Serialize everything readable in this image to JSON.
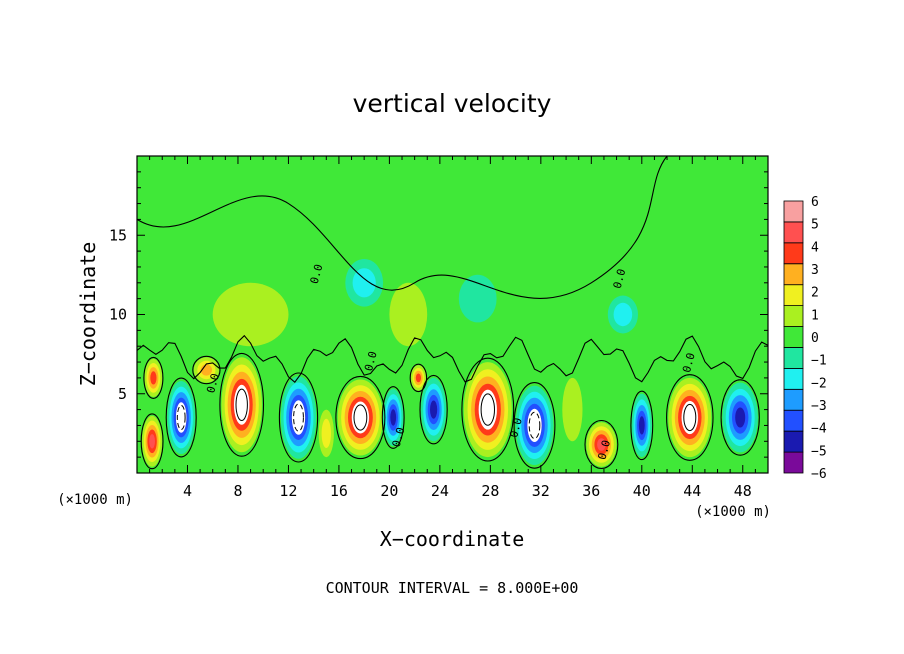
{
  "chart_data": {
    "type": "heatmap",
    "title": "vertical velocity",
    "xlabel": "X−coordinate",
    "ylabel": "Z−coordinate",
    "x_unit": "(×1000 m)",
    "y_unit": "(×1000 m)",
    "xlim": [
      0,
      50
    ],
    "ylim": [
      0,
      20
    ],
    "x_ticks": [
      4,
      8,
      12,
      16,
      20,
      24,
      28,
      32,
      36,
      40,
      44,
      48
    ],
    "y_ticks": [
      5,
      10,
      15
    ],
    "colorbar_ticks": [
      "6",
      "5",
      "4",
      "3",
      "2",
      "1",
      "0",
      "−1",
      "−2",
      "−3",
      "−4",
      "−5",
      "−6"
    ],
    "colorbar_range": [
      -6,
      6
    ],
    "colors": [
      "#7a0a9a",
      "#1a1ab0",
      "#2250ff",
      "#1e9cff",
      "#20f0f0",
      "#20e6a0",
      "#40e838",
      "#aaf020",
      "#f0f020",
      "#ffb020",
      "#ff3a1a",
      "#ff5050",
      "#f8a0a0"
    ],
    "contour_interval_text": "CONTOUR INTERVAL = 8.000E+00",
    "contour_labels": [
      "0.0",
      "0.0",
      "0.0",
      "0.0",
      "0.0",
      "0.0",
      "0.0",
      "0.0"
    ],
    "cells": [
      {
        "x": 1.2,
        "z": 2.0,
        "w": 5,
        "sx": 0.8,
        "sz": 1.6
      },
      {
        "x": 1.3,
        "z": 6.0,
        "w": 4,
        "sx": 0.7,
        "sz": 1.2
      },
      {
        "x": 3.5,
        "z": 3.5,
        "w": -6,
        "sx": 1.1,
        "sz": 2.3
      },
      {
        "x": 8.3,
        "z": 4.3,
        "w": 6,
        "sx": 1.6,
        "sz": 3.0
      },
      {
        "x": 12.8,
        "z": 3.5,
        "w": -6,
        "sx": 1.4,
        "sz": 2.6
      },
      {
        "x": 15.0,
        "z": 2.5,
        "w": 2,
        "sx": 0.6,
        "sz": 1.5
      },
      {
        "x": 17.7,
        "z": 3.5,
        "w": 6,
        "sx": 1.8,
        "sz": 2.4
      },
      {
        "x": 20.3,
        "z": 3.5,
        "w": -5,
        "sx": 0.8,
        "sz": 1.8
      },
      {
        "x": 22.3,
        "z": 6.0,
        "w": 4,
        "sx": 0.6,
        "sz": 0.8
      },
      {
        "x": 23.5,
        "z": 4.0,
        "w": -5,
        "sx": 1.0,
        "sz": 2.0
      },
      {
        "x": 27.8,
        "z": 4.0,
        "w": 6,
        "sx": 1.9,
        "sz": 3.0
      },
      {
        "x": 31.5,
        "z": 3.0,
        "w": -6,
        "sx": 1.5,
        "sz": 2.5
      },
      {
        "x": 34.5,
        "z": 4.0,
        "w": 1,
        "sx": 0.8,
        "sz": 2.0
      },
      {
        "x": 36.8,
        "z": 1.8,
        "w": 5,
        "sx": 1.2,
        "sz": 1.4
      },
      {
        "x": 40.0,
        "z": 3.0,
        "w": -5,
        "sx": 0.8,
        "sz": 2.0
      },
      {
        "x": 43.8,
        "z": 3.5,
        "w": 6,
        "sx": 1.7,
        "sz": 2.5
      },
      {
        "x": 47.8,
        "z": 3.5,
        "w": -5,
        "sx": 1.4,
        "sz": 2.2
      },
      {
        "x": 5.5,
        "z": 6.5,
        "w": 3,
        "sx": 1.0,
        "sz": 0.8
      },
      {
        "x": 18.0,
        "z": 12.0,
        "w": -2,
        "sx": 1.5,
        "sz": 1.5
      },
      {
        "x": 21.5,
        "z": 10.0,
        "w": 1,
        "sx": 1.5,
        "sz": 2.0
      },
      {
        "x": 27.0,
        "z": 11.0,
        "w": -1,
        "sx": 1.5,
        "sz": 1.5
      },
      {
        "x": 38.5,
        "z": 10.0,
        "w": -2,
        "sx": 1.2,
        "sz": 1.2
      },
      {
        "x": 9.0,
        "z": 10.0,
        "w": 1,
        "sx": 3.0,
        "sz": 2.0
      }
    ]
  }
}
